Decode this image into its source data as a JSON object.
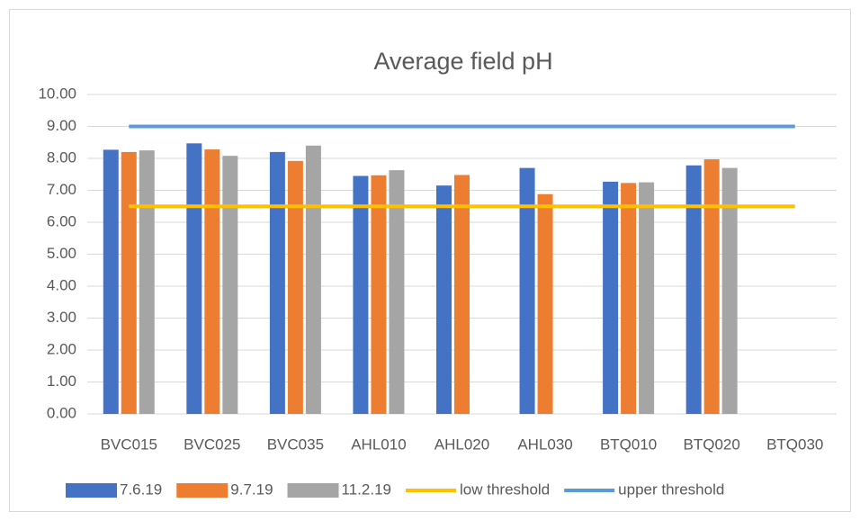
{
  "chart_data": {
    "type": "bar",
    "title": "Average field pH",
    "categories": [
      "BVC015",
      "BVC025",
      "BVC035",
      "AHL010",
      "AHL020",
      "AHL030",
      "BTQ010",
      "BTQ020",
      "BTQ030"
    ],
    "series": [
      {
        "name": "7.6.19",
        "color": "#4472c4",
        "values": [
          8.27,
          8.47,
          8.2,
          7.45,
          7.15,
          7.7,
          7.27,
          7.78,
          null
        ]
      },
      {
        "name": "9.7.19",
        "color": "#ed7d31",
        "values": [
          8.2,
          8.28,
          7.92,
          7.47,
          7.48,
          6.88,
          7.23,
          7.97,
          null
        ]
      },
      {
        "name": "11.2.19",
        "color": "#a5a5a5",
        "values": [
          8.25,
          8.08,
          8.4,
          7.63,
          null,
          null,
          7.25,
          7.7,
          null
        ]
      },
      {
        "name": "low threshold",
        "color": "#ffc000",
        "type": "line",
        "values": [
          6.5,
          6.5,
          6.5,
          6.5,
          6.5,
          6.5,
          6.5,
          6.5,
          6.5
        ]
      },
      {
        "name": "upper threshold",
        "color": "#5b9bd5",
        "type": "line",
        "values": [
          9,
          9,
          9,
          9,
          9,
          9,
          9,
          9,
          9
        ]
      }
    ],
    "ylim": [
      0,
      10
    ],
    "yticks": [
      {
        "value": 0,
        "label": "0.00"
      },
      {
        "value": 1,
        "label": "1.00"
      },
      {
        "value": 2,
        "label": "2.00"
      },
      {
        "value": 3,
        "label": "3.00"
      },
      {
        "value": 4,
        "label": "4.00"
      },
      {
        "value": 5,
        "label": "5.00"
      },
      {
        "value": 6,
        "label": "6.00"
      },
      {
        "value": 7,
        "label": "7.00"
      },
      {
        "value": 8,
        "label": "8.00"
      },
      {
        "value": 9,
        "label": "9.00"
      },
      {
        "value": 10,
        "label": "10.00"
      }
    ],
    "grid": true,
    "legend": "bottom"
  }
}
